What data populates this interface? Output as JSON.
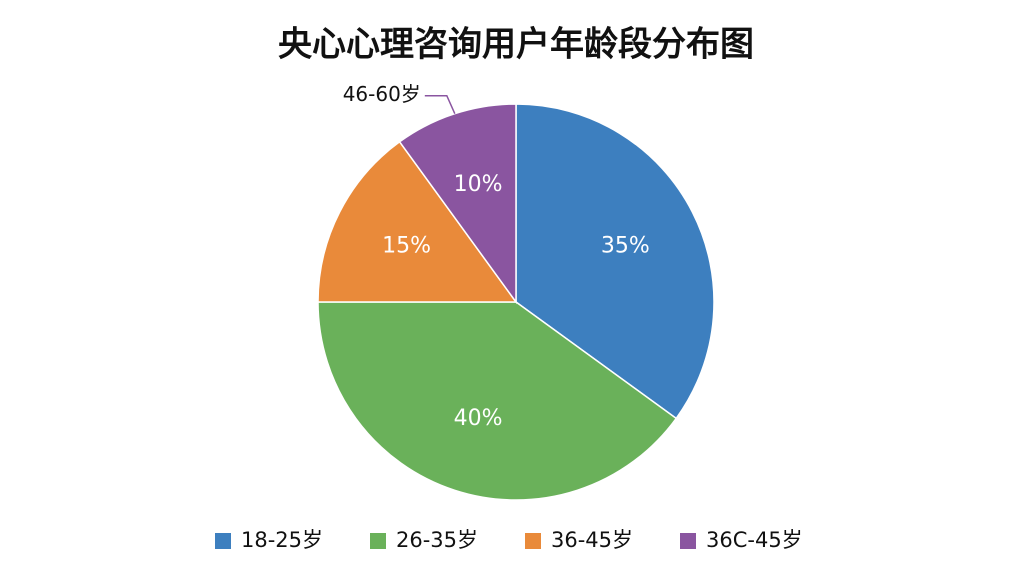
{
  "chart_data": {
    "type": "pie",
    "title": "央心心理咨询用户年龄段分布图",
    "categories": [
      "18-25岁",
      "26-35岁",
      "36-45岁",
      "36C-45岁"
    ],
    "values": [
      35,
      40,
      15,
      10
    ],
    "value_labels": [
      "35%",
      "40%",
      "15%",
      "10%"
    ],
    "colors": [
      "#3d7fbf",
      "#6ab15a",
      "#e98a3a",
      "#8a55a0"
    ],
    "annotation": "46-60岁",
    "legend": "bottom"
  }
}
